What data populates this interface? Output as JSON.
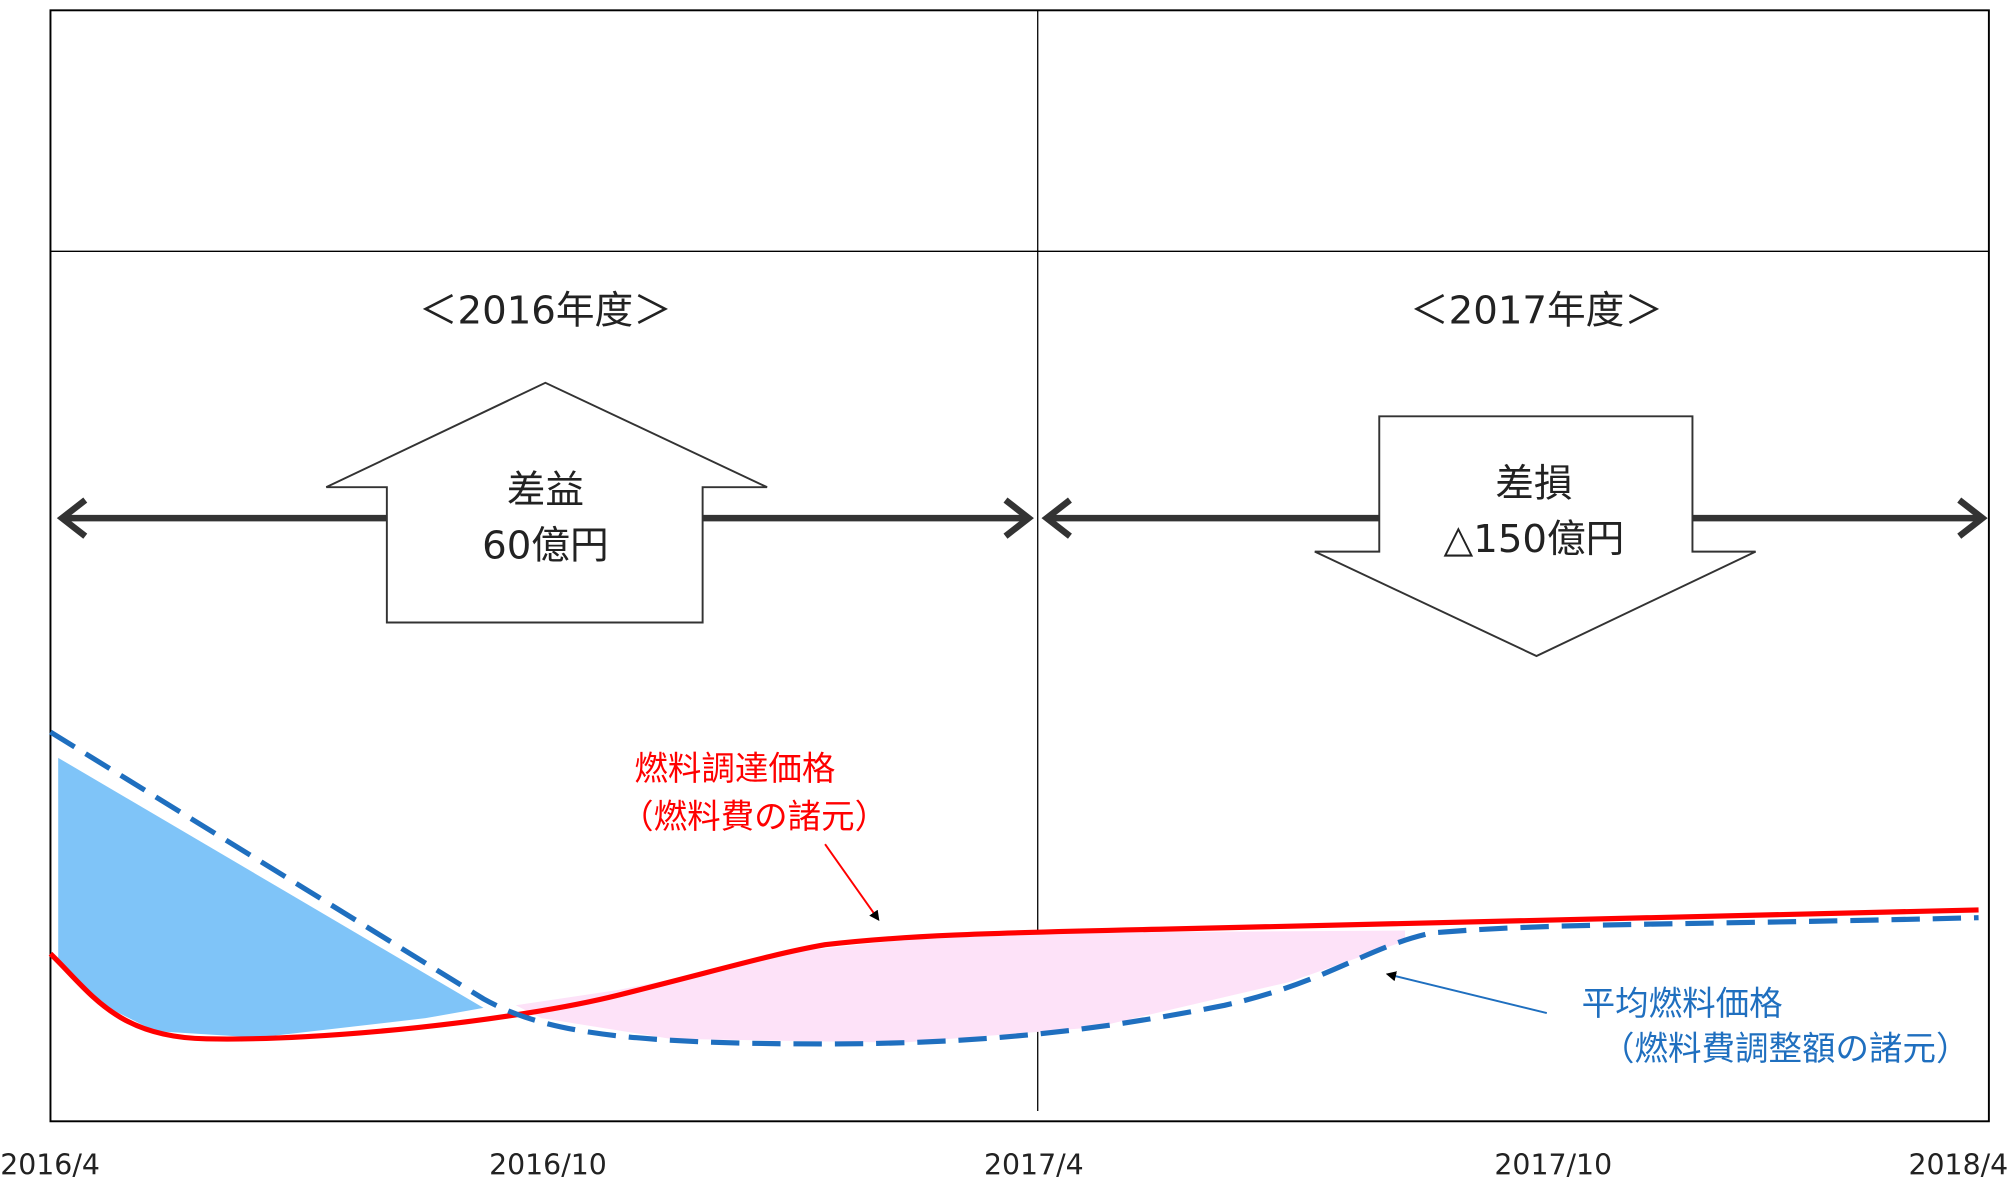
{
  "periods": [
    {
      "label": "＜2016年度＞",
      "result": [
        "差益",
        "60億円"
      ]
    },
    {
      "label": "＜2017年度＞",
      "result": [
        "差損",
        "△150億円"
      ]
    }
  ],
  "lines": [
    {
      "label": [
        "燃料調達価格",
        "（燃料費の諸元）"
      ]
    },
    {
      "label": [
        "平均燃料価格",
        "（燃料費調整額の諸元）"
      ]
    }
  ],
  "x_labels": [
    "2016/4",
    "2016/10",
    "2017/4",
    "2017/10",
    "2018/4"
  ]
}
